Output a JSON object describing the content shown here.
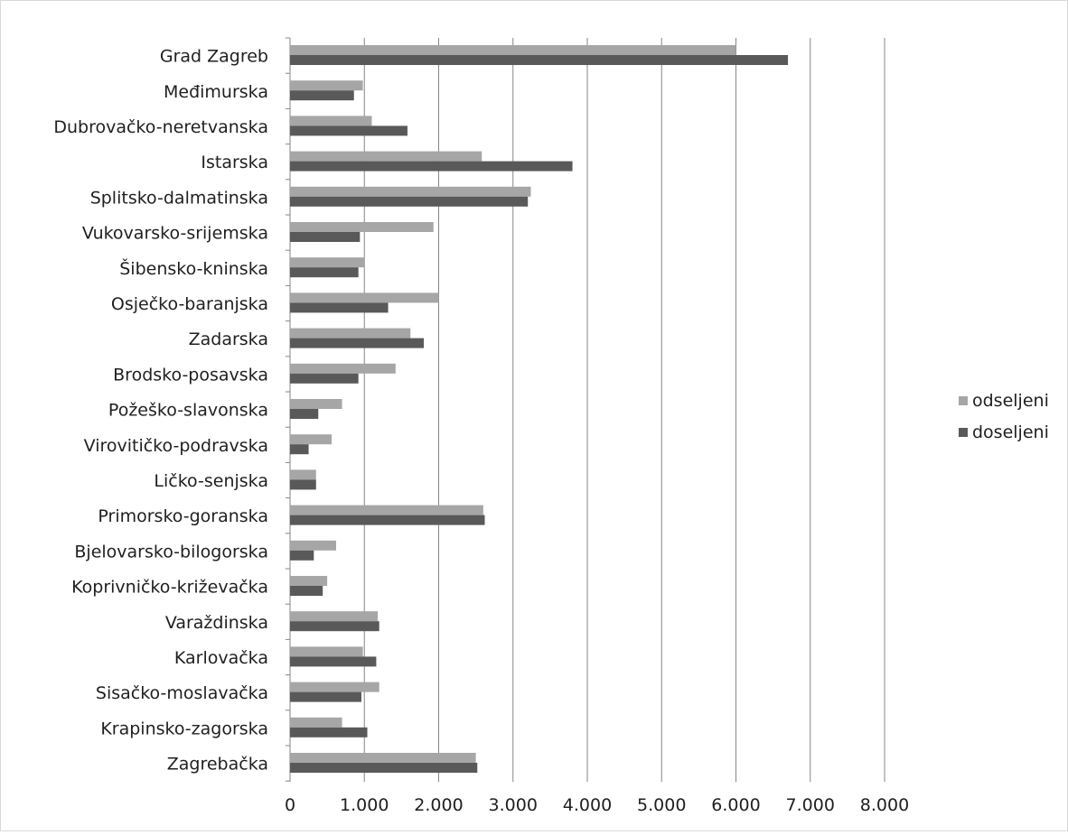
{
  "chart_data": {
    "type": "bar",
    "orientation": "horizontal",
    "categories": [
      "Grad Zagreb",
      "Međimurska",
      "Dubrovačko-neretvanska",
      "Istarska",
      "Splitsko-dalmatinska",
      "Vukovarsko-srijemska",
      "Šibensko-kninska",
      "Osječko-baranjska",
      "Zadarska",
      "Brodsko-posavska",
      "Požeško-slavonska",
      "Virovitičko-podravska",
      "Ličko-senjska",
      "Primorsko-goranska",
      "Bjelovarsko-bilogorska",
      "Koprivničko-križevačka",
      "Varaždinska",
      "Karlovačka",
      "Sisačko-moslavačka",
      "Krapinsko-zagorska",
      "Zagrebačka"
    ],
    "series": [
      {
        "name": "odseljeni",
        "color": "#a6a6a6",
        "values": [
          6000,
          980,
          1100,
          2580,
          3240,
          1930,
          1000,
          2000,
          1620,
          1420,
          700,
          560,
          350,
          2600,
          620,
          500,
          1180,
          980,
          1200,
          700,
          2500
        ]
      },
      {
        "name": "doseljeni",
        "color": "#595959",
        "values": [
          6700,
          860,
          1580,
          3800,
          3200,
          940,
          920,
          1320,
          1800,
          920,
          380,
          250,
          350,
          2620,
          320,
          440,
          1200,
          1160,
          960,
          1040,
          2520
        ]
      }
    ],
    "xlim": [
      0,
      8000
    ],
    "xticks": [
      "0",
      "1.000",
      "2.000",
      "3.000",
      "4.000",
      "5.000",
      "6.000",
      "7.000",
      "8.000"
    ],
    "grid": "vertical",
    "legend": "right",
    "frame_color": "#d9d9d9",
    "grid_color": "#868686"
  }
}
